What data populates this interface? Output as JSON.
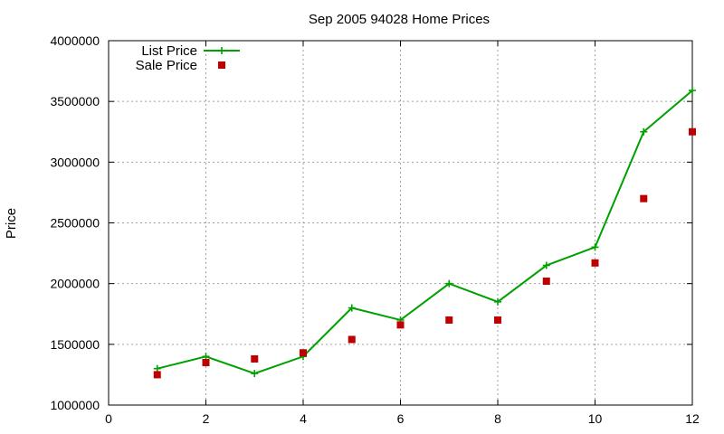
{
  "chart_data": {
    "type": "line",
    "title": "Sep 2005 94028 Home Prices",
    "xlabel": "",
    "ylabel": "Price",
    "xlim": [
      0,
      12
    ],
    "ylim": [
      1000000,
      4000000
    ],
    "xticks": [
      0,
      2,
      4,
      6,
      8,
      10,
      12
    ],
    "yticks": [
      1000000,
      1500000,
      2000000,
      2500000,
      3000000,
      3500000,
      4000000
    ],
    "x": [
      1,
      2,
      3,
      4,
      5,
      6,
      7,
      8,
      9,
      10,
      11,
      12
    ],
    "grid": true,
    "legend_position": "top-left",
    "series": [
      {
        "name": "List Price",
        "style": "line-points",
        "marker": "plus",
        "color": "#00a000",
        "values": [
          1300000,
          1400000,
          1260000,
          1400000,
          1800000,
          1700000,
          2000000,
          1850000,
          2150000,
          2300000,
          3250000,
          3590000
        ]
      },
      {
        "name": "Sale Price",
        "style": "points",
        "marker": "square",
        "color": "#c00000",
        "values": [
          1250000,
          1350000,
          1380000,
          1430000,
          1540000,
          1660000,
          1700000,
          1700000,
          2020000,
          2170000,
          2700000,
          3250000
        ]
      }
    ]
  }
}
